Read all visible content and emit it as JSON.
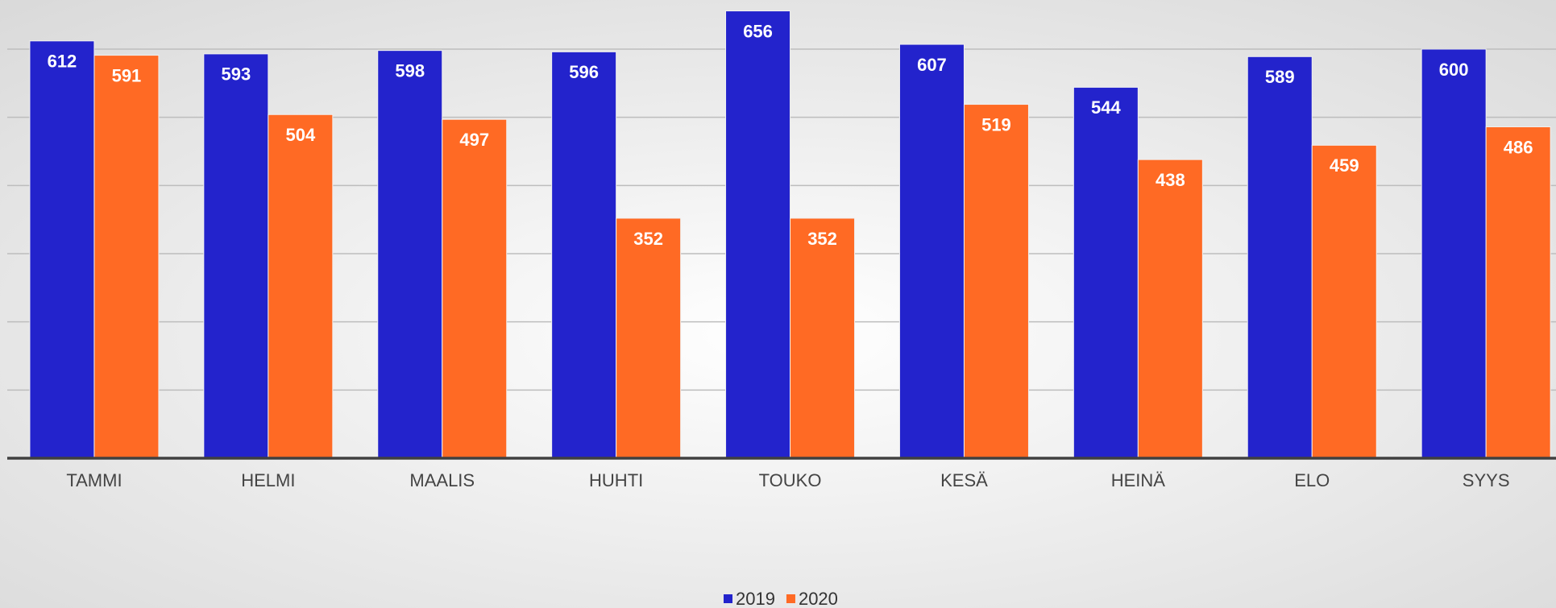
{
  "chart_data": {
    "type": "bar",
    "categories": [
      "TAMMI",
      "HELMI",
      "MAALIS",
      "HUHTI",
      "TOUKO",
      "KESÄ",
      "HEINÄ",
      "ELO",
      "SYYS"
    ],
    "series": [
      {
        "name": "2019",
        "color": "#2323cc",
        "values": [
          612,
          593,
          598,
          596,
          656,
          607,
          544,
          589,
          600
        ]
      },
      {
        "name": "2020",
        "color": "#ff6a24",
        "values": [
          591,
          504,
          497,
          352,
          352,
          519,
          438,
          459,
          486
        ]
      }
    ],
    "ylim": [
      0,
      670
    ],
    "yticks": [
      0,
      100,
      200,
      300,
      400,
      500,
      600
    ],
    "grid": true
  }
}
